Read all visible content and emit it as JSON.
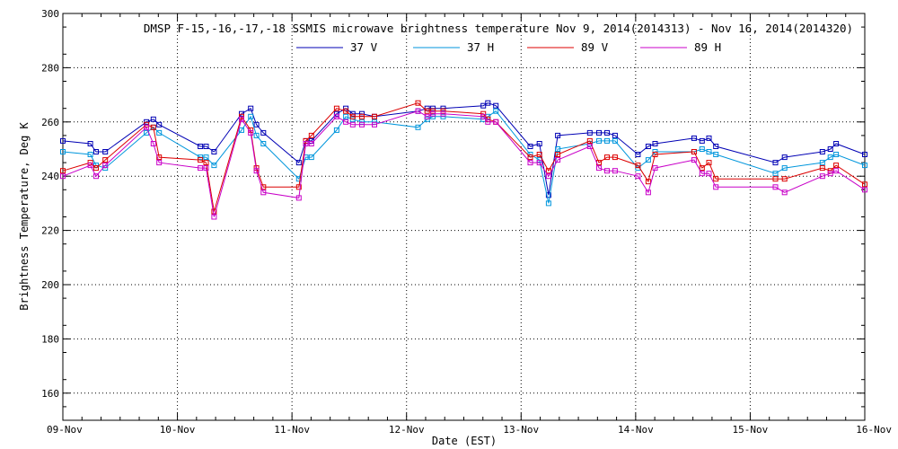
{
  "chart_data": {
    "type": "line",
    "title": "DMSP F-15,-16,-17,-18 SSMIS microwave brightness temperature Nov  9, 2014(2014313) - Nov 16, 2014(2014320)",
    "xlabel": "Date (EST)",
    "ylabel": "Brightness Temperature, Deg K",
    "xlim": [
      0,
      7
    ],
    "ylim": [
      150,
      300
    ],
    "yticks": [
      160,
      180,
      200,
      220,
      240,
      260,
      280,
      300
    ],
    "xticks": [
      0,
      1,
      2,
      3,
      4,
      5,
      6,
      7
    ],
    "xtick_labels": [
      "09-Nov",
      "10-Nov",
      "11-Nov",
      "12-Nov",
      "13-Nov",
      "14-Nov",
      "15-Nov",
      "16-Nov"
    ],
    "grid": true,
    "legend_position": "top-center",
    "series": [
      {
        "name": "37 V",
        "color": "#0000b4",
        "points": [
          [
            0.0,
            253
          ],
          [
            0.24,
            252
          ],
          [
            0.29,
            249
          ],
          [
            0.37,
            249
          ],
          [
            0.73,
            260
          ],
          [
            0.79,
            261
          ],
          [
            0.84,
            259
          ],
          [
            1.2,
            251
          ],
          [
            1.25,
            251
          ],
          [
            1.32,
            249
          ],
          [
            1.56,
            263
          ],
          [
            1.64,
            265
          ],
          [
            1.69,
            259
          ],
          [
            1.75,
            256
          ],
          [
            2.06,
            245
          ],
          [
            2.12,
            253
          ],
          [
            2.17,
            253
          ],
          [
            2.39,
            263
          ],
          [
            2.47,
            265
          ],
          [
            2.53,
            263
          ],
          [
            2.61,
            263
          ],
          [
            2.72,
            262
          ],
          [
            3.1,
            264
          ],
          [
            3.18,
            265
          ],
          [
            3.23,
            265
          ],
          [
            3.32,
            265
          ],
          [
            3.67,
            266
          ],
          [
            3.71,
            267
          ],
          [
            3.78,
            266
          ],
          [
            4.08,
            251
          ],
          [
            4.16,
            252
          ],
          [
            4.24,
            233
          ],
          [
            4.32,
            255
          ],
          [
            4.6,
            256
          ],
          [
            4.68,
            256
          ],
          [
            4.75,
            256
          ],
          [
            4.82,
            255
          ],
          [
            5.02,
            248
          ],
          [
            5.11,
            251
          ],
          [
            5.17,
            252
          ],
          [
            5.51,
            254
          ],
          [
            5.58,
            253
          ],
          [
            5.64,
            254
          ],
          [
            5.7,
            251
          ],
          [
            6.22,
            245
          ],
          [
            6.3,
            247
          ],
          [
            6.63,
            249
          ],
          [
            6.7,
            250
          ],
          [
            6.75,
            252
          ],
          [
            7.0,
            248
          ]
        ]
      },
      {
        "name": "37 H",
        "color": "#0096dc",
        "points": [
          [
            0.0,
            249
          ],
          [
            0.24,
            248
          ],
          [
            0.29,
            244
          ],
          [
            0.37,
            243
          ],
          [
            0.73,
            256
          ],
          [
            0.79,
            258
          ],
          [
            0.84,
            256
          ],
          [
            1.2,
            247
          ],
          [
            1.25,
            247
          ],
          [
            1.32,
            244
          ],
          [
            1.56,
            257
          ],
          [
            1.64,
            262
          ],
          [
            1.69,
            255
          ],
          [
            1.75,
            252
          ],
          [
            2.06,
            239
          ],
          [
            2.12,
            247
          ],
          [
            2.17,
            247
          ],
          [
            2.39,
            257
          ],
          [
            2.47,
            262
          ],
          [
            2.53,
            261
          ],
          [
            2.61,
            260
          ],
          [
            2.72,
            260
          ],
          [
            3.1,
            258
          ],
          [
            3.18,
            261
          ],
          [
            3.23,
            262
          ],
          [
            3.32,
            262
          ],
          [
            3.67,
            261
          ],
          [
            3.71,
            262
          ],
          [
            3.78,
            264
          ],
          [
            4.08,
            248
          ],
          [
            4.16,
            246
          ],
          [
            4.24,
            230
          ],
          [
            4.32,
            250
          ],
          [
            4.6,
            252
          ],
          [
            4.68,
            253
          ],
          [
            4.75,
            253
          ],
          [
            4.82,
            253
          ],
          [
            5.02,
            243
          ],
          [
            5.11,
            246
          ],
          [
            5.17,
            249
          ],
          [
            5.51,
            249
          ],
          [
            5.58,
            250
          ],
          [
            5.64,
            249
          ],
          [
            5.7,
            248
          ],
          [
            6.22,
            241
          ],
          [
            6.3,
            243
          ],
          [
            6.63,
            245
          ],
          [
            6.7,
            247
          ],
          [
            6.75,
            248
          ],
          [
            7.0,
            244
          ]
        ]
      },
      {
        "name": "89 V",
        "color": "#dc0000",
        "points": [
          [
            0.0,
            242
          ],
          [
            0.24,
            245
          ],
          [
            0.29,
            243
          ],
          [
            0.37,
            246
          ],
          [
            0.73,
            259
          ],
          [
            0.79,
            258
          ],
          [
            0.84,
            247
          ],
          [
            1.2,
            246
          ],
          [
            1.25,
            245
          ],
          [
            1.32,
            227
          ],
          [
            1.56,
            262
          ],
          [
            1.64,
            257
          ],
          [
            1.69,
            243
          ],
          [
            1.75,
            236
          ],
          [
            2.06,
            236
          ],
          [
            2.12,
            253
          ],
          [
            2.17,
            255
          ],
          [
            2.39,
            265
          ],
          [
            2.47,
            264
          ],
          [
            2.53,
            262
          ],
          [
            2.61,
            262
          ],
          [
            2.72,
            262
          ],
          [
            3.1,
            267
          ],
          [
            3.18,
            264
          ],
          [
            3.23,
            264
          ],
          [
            3.32,
            264
          ],
          [
            3.67,
            263
          ],
          [
            3.71,
            261
          ],
          [
            3.78,
            260
          ],
          [
            4.08,
            247
          ],
          [
            4.16,
            248
          ],
          [
            4.24,
            242
          ],
          [
            4.32,
            248
          ],
          [
            4.6,
            253
          ],
          [
            4.68,
            245
          ],
          [
            4.75,
            247
          ],
          [
            4.82,
            247
          ],
          [
            5.02,
            244
          ],
          [
            5.11,
            238
          ],
          [
            5.17,
            248
          ],
          [
            5.51,
            249
          ],
          [
            5.58,
            243
          ],
          [
            5.64,
            245
          ],
          [
            5.7,
            239
          ],
          [
            6.22,
            239
          ],
          [
            6.3,
            239
          ],
          [
            6.63,
            243
          ],
          [
            6.7,
            242
          ],
          [
            6.75,
            244
          ],
          [
            7.0,
            237
          ]
        ]
      },
      {
        "name": "89 H",
        "color": "#c800c8",
        "points": [
          [
            0.0,
            240
          ],
          [
            0.24,
            244
          ],
          [
            0.29,
            240
          ],
          [
            0.37,
            244
          ],
          [
            0.73,
            258
          ],
          [
            0.79,
            252
          ],
          [
            0.84,
            245
          ],
          [
            1.2,
            243
          ],
          [
            1.25,
            243
          ],
          [
            1.32,
            225
          ],
          [
            1.56,
            261
          ],
          [
            1.64,
            256
          ],
          [
            1.69,
            242
          ],
          [
            1.75,
            234
          ],
          [
            2.06,
            232
          ],
          [
            2.12,
            252
          ],
          [
            2.17,
            252
          ],
          [
            2.39,
            262
          ],
          [
            2.47,
            260
          ],
          [
            2.53,
            259
          ],
          [
            2.61,
            259
          ],
          [
            2.72,
            259
          ],
          [
            3.1,
            264
          ],
          [
            3.18,
            262
          ],
          [
            3.23,
            263
          ],
          [
            3.32,
            263
          ],
          [
            3.67,
            262
          ],
          [
            3.71,
            260
          ],
          [
            3.78,
            260
          ],
          [
            4.08,
            245
          ],
          [
            4.16,
            245
          ],
          [
            4.24,
            240
          ],
          [
            4.32,
            246
          ],
          [
            4.6,
            251
          ],
          [
            4.68,
            243
          ],
          [
            4.75,
            242
          ],
          [
            4.82,
            242
          ],
          [
            5.02,
            240
          ],
          [
            5.11,
            234
          ],
          [
            5.17,
            243
          ],
          [
            5.51,
            246
          ],
          [
            5.58,
            241
          ],
          [
            5.64,
            241
          ],
          [
            5.7,
            236
          ],
          [
            6.22,
            236
          ],
          [
            6.3,
            234
          ],
          [
            6.63,
            240
          ],
          [
            6.7,
            241
          ],
          [
            6.75,
            242
          ],
          [
            7.0,
            235
          ]
        ]
      }
    ]
  }
}
